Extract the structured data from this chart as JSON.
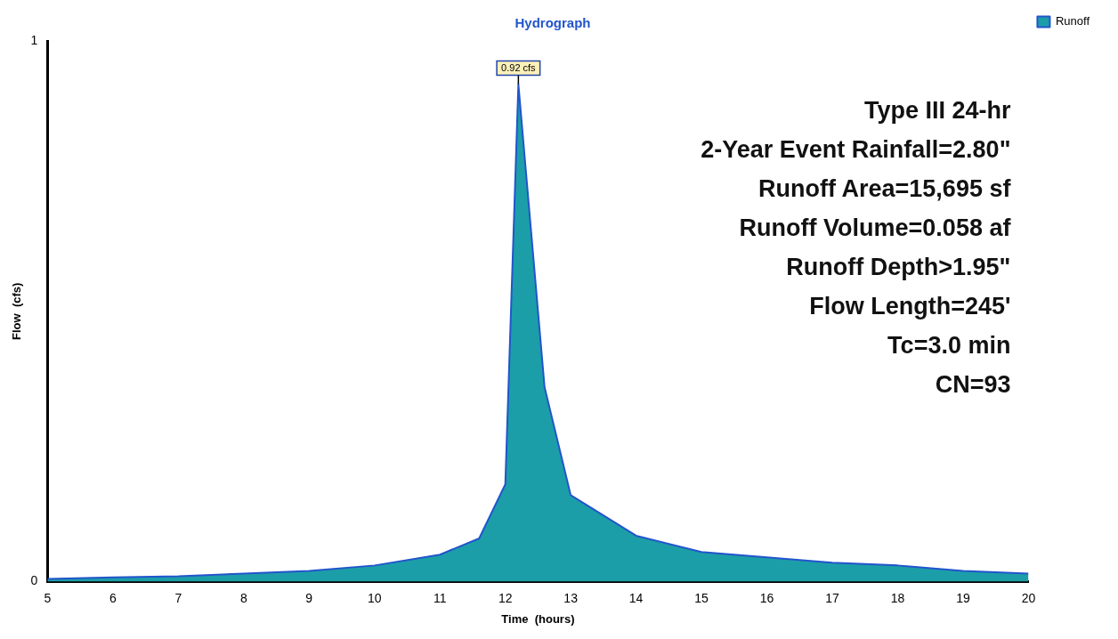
{
  "chart_data": {
    "type": "area",
    "title": "Hydrograph",
    "xlabel": "Time  (hours)",
    "ylabel": "Flow  (cfs)",
    "x": [
      5,
      6,
      7,
      8,
      9,
      10,
      11,
      11.6,
      12,
      12.2,
      12.6,
      13,
      14,
      15,
      16,
      17,
      18,
      19,
      20
    ],
    "series": [
      {
        "name": "Runoff",
        "color": "#1c9ea8",
        "values": [
          0.005,
          0.008,
          0.01,
          0.015,
          0.02,
          0.03,
          0.05,
          0.08,
          0.18,
          0.92,
          0.36,
          0.16,
          0.085,
          0.055,
          0.045,
          0.035,
          0.03,
          0.02,
          0.015
        ]
      }
    ],
    "xlim": [
      5,
      20
    ],
    "xticks": [
      5,
      6,
      7,
      8,
      9,
      10,
      11,
      12,
      13,
      14,
      15,
      16,
      17,
      18,
      19,
      20
    ],
    "ylim": [
      0,
      1
    ],
    "yticks": [
      0,
      1
    ],
    "grid": false,
    "legend": "top right",
    "annotations": [
      {
        "text": "0.92 cfs",
        "x": 12.2,
        "y": 0.92
      },
      "Type III 24-hr",
      "2-Year Event Rainfall=2.80\"",
      "Runoff Area=15,695 sf",
      "Runoff Volume=0.058 af",
      "Runoff Depth>1.95\"",
      "Flow Length=245'",
      "Tc=3.0 min",
      "CN=93"
    ]
  }
}
